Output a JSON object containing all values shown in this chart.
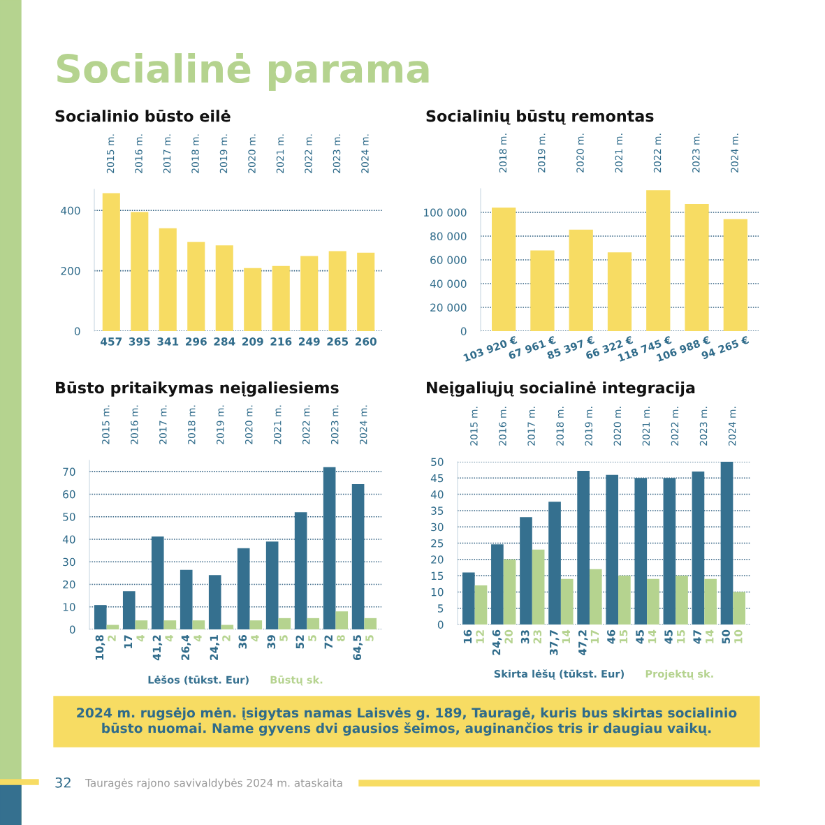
{
  "chart_data": [
    {
      "type": "bar",
      "title": "Socialinio būsto eilė",
      "categories": [
        "2015 m.",
        "2016 m.",
        "2017 m.",
        "2018 m.",
        "2019 m.",
        "2020 m.",
        "2021 m.",
        "2022 m.",
        "2023 m.",
        "2024 m."
      ],
      "values": [
        457,
        395,
        341,
        296,
        284,
        209,
        216,
        249,
        265,
        260
      ],
      "color": "#f7dc63",
      "ylim": [
        0,
        470
      ],
      "yticks": [
        0,
        200,
        400
      ],
      "grid": "y",
      "data_labels": true
    },
    {
      "type": "bar",
      "title": "Socialinių būstų remontas",
      "categories": [
        "2018 m.",
        "2019 m.",
        "2020 m.",
        "2021 m.",
        "2022 m.",
        "2023 m.",
        "2024 m."
      ],
      "values": [
        103920,
        67961,
        85397,
        66322,
        118745,
        106988,
        94265
      ],
      "color": "#f7dc63",
      "value_labels": [
        "103 920 €",
        "67 961 €",
        "85 397 €",
        "66 322 €",
        "118 745 €",
        "106 988 €",
        "94 265 €"
      ],
      "ylim": [
        0,
        120000
      ],
      "yticks": [
        {
          "value": 0,
          "label": "0"
        },
        {
          "value": 20000,
          "label": "20 000"
        },
        {
          "value": 40000,
          "label": "40 000"
        },
        {
          "value": 60000,
          "label": "60 000"
        },
        {
          "value": 80000,
          "label": "80 000"
        },
        {
          "value": 100000,
          "label": "100 000"
        }
      ],
      "grid": "y"
    },
    {
      "type": "bar",
      "title": "Būsto pritaikymas neįgaliesiems",
      "categories": [
        "2015 m.",
        "2016 m.",
        "2017 m.",
        "2018 m.",
        "2019 m.",
        "2020 m.",
        "2021 m.",
        "2022 m.",
        "2023 m.",
        "2024 m."
      ],
      "series": [
        {
          "name": "Lėšos (tūkst. Eur)",
          "color": "#35708f",
          "values": [
            10.8,
            17,
            41.2,
            26.4,
            24.1,
            36,
            39,
            52,
            72,
            64.5
          ],
          "value_labels": [
            "10,8",
            "17",
            "41,2",
            "26,4",
            "24,1",
            "36",
            "39",
            "52",
            "72",
            "64,5"
          ]
        },
        {
          "name": "Būstų sk.",
          "color": "#b5d38f",
          "values": [
            2,
            4,
            4,
            4,
            2,
            4,
            5,
            5,
            8,
            5
          ],
          "value_labels": [
            "2",
            "4",
            "4",
            "4",
            "2",
            "4",
            "5",
            "5",
            "8",
            "5"
          ]
        }
      ],
      "ylim": [
        0,
        75
      ],
      "yticks": [
        0,
        10,
        20,
        30,
        40,
        50,
        60,
        70
      ],
      "grid": "y",
      "legend": "bottom"
    },
    {
      "type": "bar",
      "title": "Neįgaliųjų socialinė integracija",
      "categories": [
        "2015 m.",
        "2016 m.",
        "2017 m.",
        "2018 m.",
        "2019 m.",
        "2020 m.",
        "2021 m.",
        "2022 m.",
        "2023 m.",
        "2024 m."
      ],
      "series": [
        {
          "name": "Skirta lėšų (tūkst. Eur)",
          "color": "#35708f",
          "values": [
            16,
            24.6,
            33,
            37.7,
            47.2,
            46,
            45,
            45,
            47,
            50
          ],
          "value_labels": [
            "16",
            "24,6",
            "33",
            "37,7",
            "47,2",
            "46",
            "45",
            "45",
            "47",
            "50"
          ]
        },
        {
          "name": "Projektų sk.",
          "color": "#b5d38f",
          "values": [
            12,
            20,
            23,
            14,
            17,
            15,
            14,
            15,
            14,
            10
          ],
          "value_labels": [
            "12",
            "20",
            "23",
            "14",
            "17",
            "15",
            "14",
            "15",
            "14",
            "10"
          ]
        }
      ],
      "ylim": [
        0,
        50
      ],
      "yticks": [
        0,
        5,
        10,
        15,
        20,
        25,
        30,
        35,
        40,
        45,
        50
      ],
      "grid": "y",
      "legend": "bottom"
    },
    {
      "type": "other",
      "title": "Socialinė parama",
      "annotations": [
        "2024 m. rugsėjo mėn. įsigytas namas Laisvės g. 189, Tauragė, kuris bus skirtas socialinio būsto nuomai. Name gyvens dvi gausios šeimos, auginančios tris ir daugiau vaikų.",
        "32",
        "Tauragės rajono savivaldybės 2024 m. ataskaita"
      ]
    }
  ]
}
